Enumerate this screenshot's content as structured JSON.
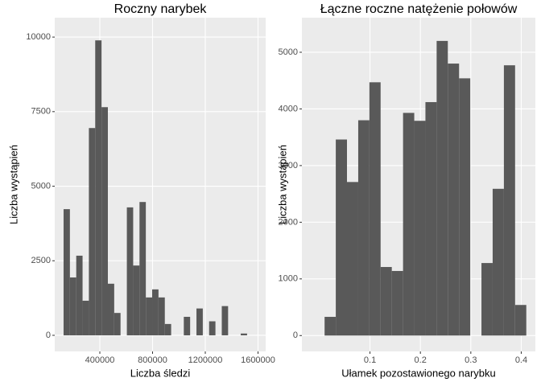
{
  "chart_data": [
    {
      "type": "histogram",
      "title": "Roczny narybek",
      "x_label": "Liczba śledzi",
      "y_label": "Liczba wystąpień",
      "color": "#595959",
      "grid": true,
      "bins": [
        125000,
        173000,
        221000,
        269000,
        317000,
        365000,
        413000,
        461000,
        509000,
        557000,
        605000,
        653000,
        701000,
        749000,
        797000,
        845000,
        893000,
        941000,
        989000,
        1037000,
        1085000,
        1133000,
        1181000,
        1229000,
        1277000,
        1325000,
        1373000,
        1421000,
        1469000,
        1517000,
        1565000
      ],
      "counts": [
        4230,
        1940,
        2670,
        1160,
        6950,
        9890,
        7650,
        1730,
        750,
        0,
        4290,
        2340,
        4470,
        1270,
        1540,
        1270,
        380,
        0,
        0,
        620,
        0,
        900,
        0,
        470,
        0,
        980,
        0,
        0,
        60,
        0
      ],
      "xlim": [
        58000,
        1658000
      ],
      "ylim": [
        -540,
        10650
      ],
      "xticks": [
        400000,
        800000,
        1200000,
        1600000
      ],
      "yticks": [
        0,
        2500,
        5000,
        7500,
        10000
      ]
    },
    {
      "type": "histogram",
      "title": "Łączne roczne natężenie połowów",
      "x_label": "Ułamek pozostawionego narybku",
      "y_label": "Liczba wystąpień",
      "color": "#595959",
      "grid": true,
      "bins": [
        0.01,
        0.0322,
        0.0544,
        0.0767,
        0.0989,
        0.1211,
        0.1433,
        0.1656,
        0.1878,
        0.21,
        0.2322,
        0.2544,
        0.2767,
        0.2989,
        0.3211,
        0.3433,
        0.3656,
        0.3878,
        0.41
      ],
      "counts": [
        330,
        3460,
        2710,
        3800,
        4470,
        1210,
        1140,
        3930,
        3790,
        4120,
        5200,
        4800,
        4540,
        0,
        1280,
        2590,
        4770,
        540
      ],
      "xlim": [
        -0.035,
        0.428
      ],
      "ylim": [
        -280,
        5610
      ],
      "xticks": [
        0.1,
        0.2,
        0.3,
        0.4
      ],
      "yticks": [
        0,
        1000,
        2000,
        3000,
        4000,
        5000
      ]
    }
  ]
}
